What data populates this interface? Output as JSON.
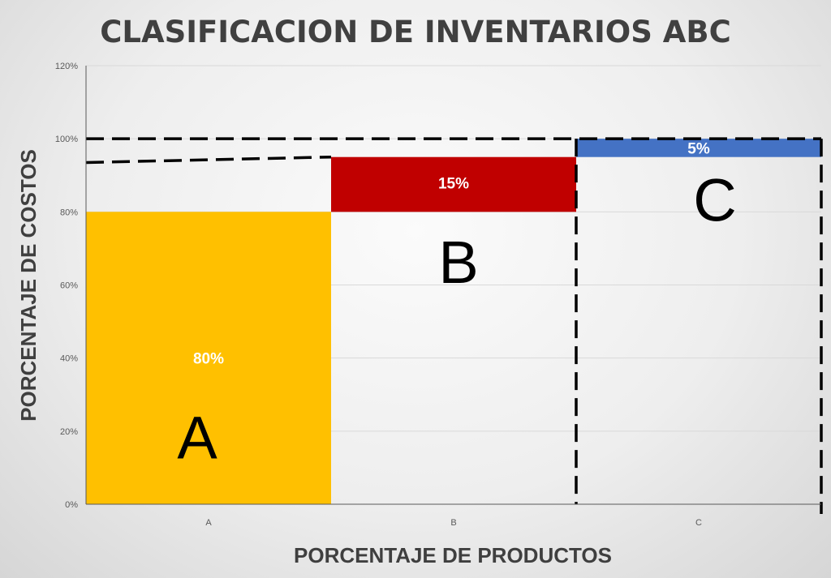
{
  "chart_data": {
    "type": "bar",
    "title": "CLASIFICACION DE INVENTARIOS ABC",
    "xlabel": "PORCENTAJE DE PRODUCTOS",
    "ylabel": "PORCENTAJE DE COSTOS",
    "categories": [
      "A",
      "B",
      "C"
    ],
    "series": [
      {
        "values": [
          80,
          15,
          5
        ],
        "colors": [
          "#ffc000",
          "#c00000",
          "#4472c4"
        ]
      }
    ],
    "bar_bases": [
      0,
      80,
      95
    ],
    "bar_labels": [
      "80%",
      "15%",
      "5%"
    ],
    "group_letters": [
      "A",
      "B",
      "C"
    ],
    "ylim": [
      0,
      120
    ],
    "yticks": [
      "0%",
      "20%",
      "40%",
      "60%",
      "80%",
      "100%",
      "120%"
    ],
    "ytick_values": [
      0,
      20,
      40,
      60,
      80,
      100,
      120
    ],
    "grid": true,
    "annotations": "dashed reference lines at 100% and category boundaries",
    "colors": {
      "grid": "#d9d9d9",
      "axis": "#595959",
      "dash": "#000000"
    }
  }
}
